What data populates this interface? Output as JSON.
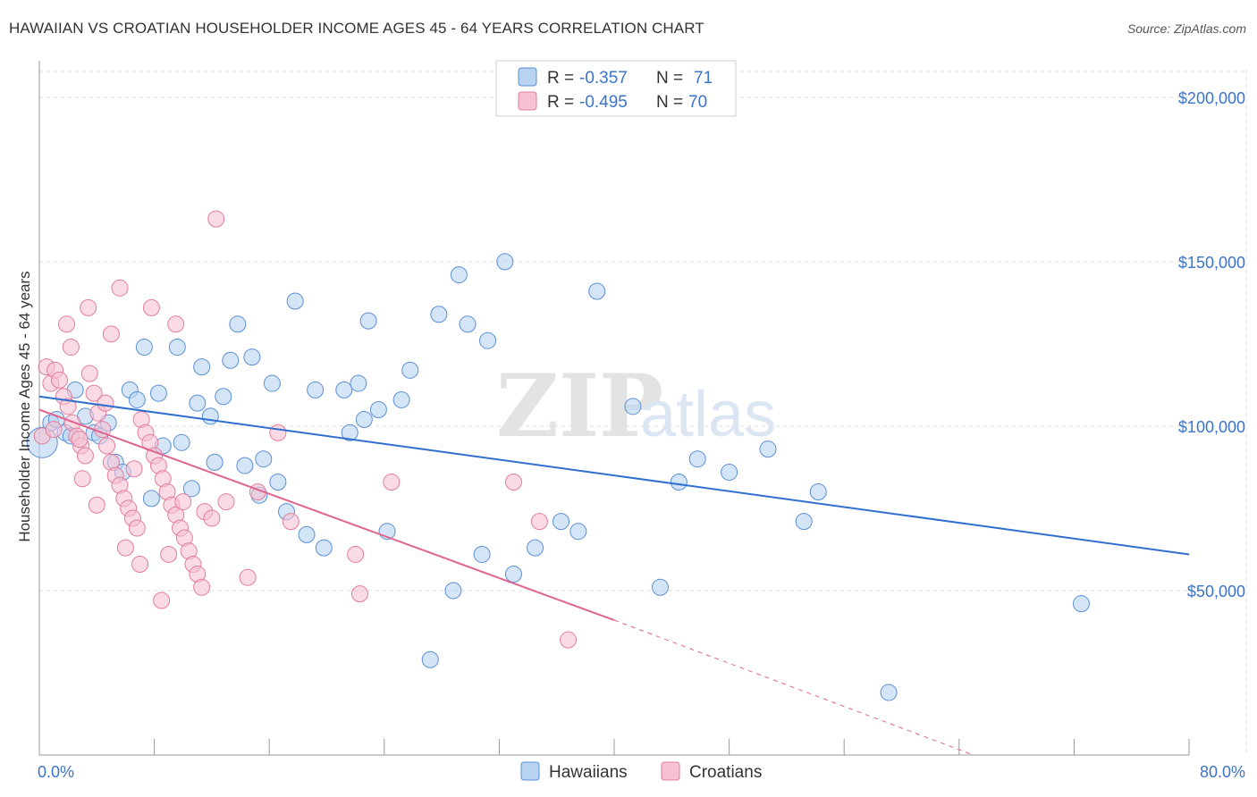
{
  "title": "HAWAIIAN VS CROATIAN HOUSEHOLDER INCOME AGES 45 - 64 YEARS CORRELATION CHART",
  "source": "Source: ZipAtlas.com",
  "watermark": {
    "zip": "ZIP",
    "atlas": "atlas"
  },
  "colors": {
    "blue_fill": "#b8d3f2",
    "blue_stroke": "#5b8fd6",
    "blue_line": "#2f6fcf",
    "pink_fill": "#f6c2d2",
    "pink_stroke": "#e27d9c",
    "pink_line": "#e0648f",
    "grid": "#dddddd",
    "axis_label": "#3b74c9"
  },
  "legend": {
    "rows": [
      {
        "r_label": "R =",
        "r_value": "-0.357",
        "n_label": "N =",
        "n_value": "71"
      },
      {
        "r_label": "R =",
        "r_value": "-0.495",
        "n_label": "N =",
        "n_value": "70"
      }
    ]
  },
  "bottom_legend": [
    "Hawaiians",
    "Croatians"
  ],
  "chart_data": {
    "type": "scatter",
    "xlabel": "",
    "ylabel": "Householder Income Ages 45 - 64 years",
    "xlim": [
      0,
      80
    ],
    "ylim": [
      0,
      210000
    ],
    "x_tick_labels": [
      "0.0%",
      "80.0%"
    ],
    "y_ticks": [
      50000,
      100000,
      150000,
      200000
    ],
    "y_tick_labels": [
      "$50,000",
      "$100,000",
      "$150,000",
      "$200,000"
    ],
    "series": [
      {
        "name": "Hawaiians",
        "r": -0.357,
        "n": 71,
        "trend": {
          "x0": 0,
          "y0": 109000,
          "x1": 80,
          "y1": 61000
        },
        "points": [
          [
            0.2,
            95000
          ],
          [
            0.8,
            101000
          ],
          [
            1.2,
            102000
          ],
          [
            1.8,
            98000
          ],
          [
            2.2,
            97000
          ],
          [
            2.5,
            111000
          ],
          [
            3.2,
            103000
          ],
          [
            3.8,
            98000
          ],
          [
            4.2,
            97000
          ],
          [
            4.8,
            101000
          ],
          [
            5.3,
            89000
          ],
          [
            5.8,
            86000
          ],
          [
            6.3,
            111000
          ],
          [
            6.8,
            108000
          ],
          [
            7.3,
            124000
          ],
          [
            7.8,
            78000
          ],
          [
            8.3,
            110000
          ],
          [
            8.6,
            94000
          ],
          [
            9.6,
            124000
          ],
          [
            9.9,
            95000
          ],
          [
            10.6,
            81000
          ],
          [
            11.0,
            107000
          ],
          [
            11.3,
            118000
          ],
          [
            11.9,
            103000
          ],
          [
            12.2,
            89000
          ],
          [
            12.8,
            109000
          ],
          [
            13.3,
            120000
          ],
          [
            13.8,
            131000
          ],
          [
            14.3,
            88000
          ],
          [
            14.8,
            121000
          ],
          [
            15.3,
            79000
          ],
          [
            15.6,
            90000
          ],
          [
            16.2,
            113000
          ],
          [
            16.6,
            83000
          ],
          [
            17.2,
            74000
          ],
          [
            17.8,
            138000
          ],
          [
            18.6,
            67000
          ],
          [
            19.2,
            111000
          ],
          [
            19.8,
            63000
          ],
          [
            21.2,
            111000
          ],
          [
            21.6,
            98000
          ],
          [
            22.2,
            113000
          ],
          [
            22.6,
            102000
          ],
          [
            22.9,
            132000
          ],
          [
            23.6,
            105000
          ],
          [
            24.2,
            68000
          ],
          [
            25.2,
            108000
          ],
          [
            25.8,
            117000
          ],
          [
            27.2,
            29000
          ],
          [
            27.8,
            134000
          ],
          [
            28.8,
            50000
          ],
          [
            29.2,
            146000
          ],
          [
            29.8,
            131000
          ],
          [
            30.8,
            61000
          ],
          [
            31.2,
            126000
          ],
          [
            32.4,
            150000
          ],
          [
            33.0,
            55000
          ],
          [
            34.5,
            63000
          ],
          [
            36.3,
            71000
          ],
          [
            37.5,
            68000
          ],
          [
            38.8,
            141000
          ],
          [
            41.3,
            106000
          ],
          [
            43.2,
            51000
          ],
          [
            44.5,
            83000
          ],
          [
            45.8,
            90000
          ],
          [
            48.0,
            86000
          ],
          [
            50.7,
            93000
          ],
          [
            53.2,
            71000
          ],
          [
            54.2,
            80000
          ],
          [
            59.1,
            19000
          ],
          [
            72.5,
            46000
          ]
        ]
      },
      {
        "name": "Croatians",
        "r": -0.495,
        "n": 70,
        "trend": {
          "x0": 0,
          "y0": 105000,
          "x1": 40,
          "y1": 41000
        },
        "trend_ext": {
          "x0": 40,
          "y0": 41000,
          "x1": 65,
          "y1": 0
        },
        "points": [
          [
            0.2,
            97000
          ],
          [
            0.5,
            118000
          ],
          [
            0.8,
            113000
          ],
          [
            1.1,
            117000
          ],
          [
            1.4,
            114000
          ],
          [
            1.7,
            109000
          ],
          [
            2.0,
            106000
          ],
          [
            2.3,
            101000
          ],
          [
            2.6,
            97000
          ],
          [
            2.9,
            94000
          ],
          [
            3.2,
            91000
          ],
          [
            3.5,
            116000
          ],
          [
            3.8,
            110000
          ],
          [
            4.1,
            104000
          ],
          [
            4.4,
            99000
          ],
          [
            4.7,
            94000
          ],
          [
            5.0,
            89000
          ],
          [
            5.3,
            85000
          ],
          [
            5.6,
            82000
          ],
          [
            5.9,
            78000
          ],
          [
            6.2,
            75000
          ],
          [
            6.5,
            72000
          ],
          [
            6.8,
            69000
          ],
          [
            7.1,
            102000
          ],
          [
            7.4,
            98000
          ],
          [
            7.7,
            95000
          ],
          [
            8.0,
            91000
          ],
          [
            8.3,
            88000
          ],
          [
            8.6,
            84000
          ],
          [
            8.9,
            80000
          ],
          [
            9.2,
            76000
          ],
          [
            9.5,
            73000
          ],
          [
            9.8,
            69000
          ],
          [
            10.1,
            66000
          ],
          [
            10.4,
            62000
          ],
          [
            10.7,
            58000
          ],
          [
            11.0,
            55000
          ],
          [
            11.3,
            51000
          ],
          [
            1.9,
            131000
          ],
          [
            2.2,
            124000
          ],
          [
            3.4,
            136000
          ],
          [
            5.0,
            128000
          ],
          [
            5.6,
            142000
          ],
          [
            7.8,
            136000
          ],
          [
            9.5,
            131000
          ],
          [
            12.3,
            163000
          ],
          [
            13.0,
            77000
          ],
          [
            14.5,
            54000
          ],
          [
            15.2,
            80000
          ],
          [
            16.6,
            98000
          ],
          [
            17.5,
            71000
          ],
          [
            22.0,
            61000
          ],
          [
            22.3,
            49000
          ],
          [
            24.5,
            83000
          ],
          [
            33.0,
            83000
          ],
          [
            34.8,
            71000
          ],
          [
            36.8,
            35000
          ],
          [
            3.0,
            84000
          ],
          [
            4.0,
            76000
          ],
          [
            6.0,
            63000
          ],
          [
            7.0,
            58000
          ],
          [
            8.5,
            47000
          ],
          [
            9.0,
            61000
          ],
          [
            10.0,
            77000
          ],
          [
            11.5,
            74000
          ],
          [
            12.0,
            72000
          ],
          [
            1.0,
            99000
          ],
          [
            2.8,
            96000
          ],
          [
            4.6,
            107000
          ],
          [
            6.6,
            87000
          ]
        ]
      }
    ]
  }
}
